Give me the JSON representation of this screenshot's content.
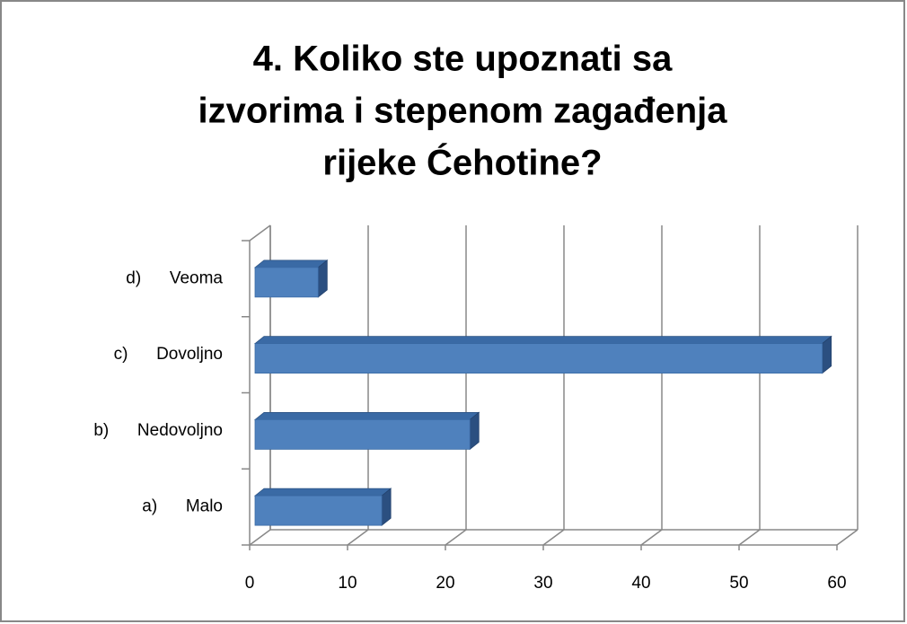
{
  "chart_data": {
    "type": "bar3d_horizontal",
    "title": [
      "4.      Koliko ste upoznati sa",
      "izvorima i stepenom zagađenja",
      "rijeke Ćehotine?"
    ],
    "categories": [
      "a)      Malo",
      "b)      Nedovoljno",
      "c)      Dovoljno",
      "d)      Veoma"
    ],
    "values": [
      13.5,
      22.5,
      58.5,
      7
    ],
    "color": "#4f81bd",
    "xlim": [
      0,
      60
    ],
    "xticks": [
      0,
      10,
      20,
      30,
      40,
      50,
      60
    ],
    "grid": true
  }
}
